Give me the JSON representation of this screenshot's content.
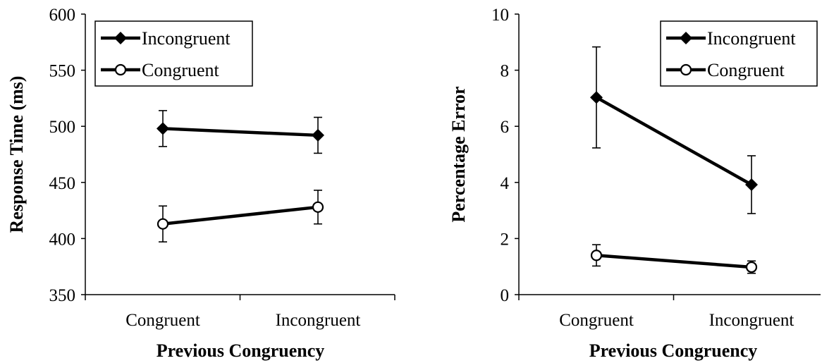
{
  "chart_data": [
    {
      "type": "line",
      "title": "",
      "xlabel": "Previous Congruency",
      "ylabel": "Response Time (ms)",
      "categories": [
        "Congruent",
        "Incongruent"
      ],
      "ylim": [
        350,
        600
      ],
      "yticks": [
        "600",
        "550",
        "500",
        "450",
        "400",
        "350"
      ],
      "grid": false,
      "legend_position": "top-left",
      "series": [
        {
          "name": "Incongruent",
          "marker": "diamond-filled",
          "values": [
            498,
            492
          ],
          "error": [
            16,
            16
          ]
        },
        {
          "name": "Congruent",
          "marker": "circle-open",
          "values": [
            413,
            428
          ],
          "error": [
            16,
            15
          ]
        }
      ]
    },
    {
      "type": "line",
      "title": "",
      "xlabel": "Previous Congruency",
      "ylabel": "Percentage Error",
      "categories": [
        "Congruent",
        "Incongruent"
      ],
      "ylim": [
        0,
        10
      ],
      "yticks": [
        "10",
        "8",
        "6",
        "4",
        "2",
        "0"
      ],
      "grid": false,
      "legend_position": "top-right",
      "series": [
        {
          "name": "Incongruent",
          "marker": "diamond-filled",
          "values": [
            7.03,
            3.92
          ],
          "error": [
            1.8,
            1.03
          ]
        },
        {
          "name": "Congruent",
          "marker": "circle-open",
          "values": [
            1.4,
            0.98
          ],
          "error": [
            0.38,
            0.22
          ]
        }
      ]
    }
  ]
}
